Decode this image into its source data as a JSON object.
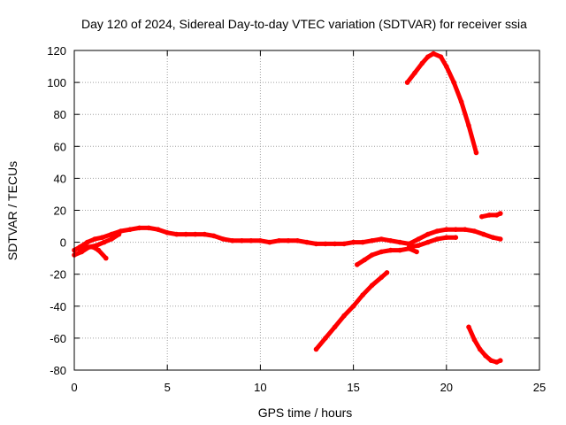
{
  "chart_data": {
    "type": "scatter",
    "title": "Day 120 of 2024, Sidereal Day-to-day VTEC variation (SDTVAR) for receiver ssia",
    "xlabel": "GPS time / hours",
    "ylabel": "SDTVAR / TECUs",
    "xlim": [
      0,
      25
    ],
    "ylim": [
      -80,
      120
    ],
    "xticks": [
      0,
      5,
      10,
      15,
      20,
      25
    ],
    "yticks": [
      -80,
      -60,
      -40,
      -20,
      0,
      20,
      40,
      60,
      80,
      100,
      120
    ],
    "grid": true,
    "legend": "none",
    "color": "#ff0000",
    "series": [
      {
        "x": [
          0.0,
          0.3,
          0.7,
          1.1,
          1.5,
          2.0,
          2.5,
          3.0,
          3.5,
          4.0,
          4.5,
          5.0,
          5.5,
          6.0,
          6.5,
          7.0,
          7.5,
          8.0,
          8.5,
          9.0,
          9.5,
          10.0,
          10.5,
          11.0,
          11.5,
          12.0,
          12.5,
          13.0,
          13.5,
          14.0,
          14.5,
          15.0,
          15.5,
          16.0,
          16.5,
          17.0,
          17.5,
          18.0,
          18.5,
          19.0,
          19.5,
          20.0,
          20.5,
          21.0,
          21.5,
          22.0,
          22.5,
          22.9
        ],
        "y": [
          -5,
          -3,
          0,
          2,
          3,
          5,
          7,
          8,
          9,
          9,
          8,
          6,
          5,
          5,
          5,
          5,
          4,
          2,
          1,
          1,
          1,
          1,
          0,
          1,
          1,
          1,
          0,
          -1,
          -1,
          -1,
          -1,
          0,
          0,
          1,
          2,
          1,
          0,
          -1,
          2,
          5,
          7,
          8,
          8,
          8,
          7,
          5,
          3,
          2
        ]
      },
      {
        "x": [
          0.0,
          0.4,
          0.8,
          1.2,
          1.6,
          2.0,
          2.4
        ],
        "y": [
          -8,
          -6,
          -3,
          -2,
          0,
          2,
          5
        ]
      },
      {
        "x": [
          0.2,
          0.6,
          1.0,
          1.3,
          1.7
        ],
        "y": [
          -4,
          -3,
          -3,
          -5,
          -10
        ]
      },
      {
        "x": [
          15.2,
          15.6,
          16.0,
          16.5,
          17.0,
          17.5,
          18.0,
          18.4
        ],
        "y": [
          -14,
          -11,
          -8,
          -6,
          -5,
          -5,
          -4,
          -6
        ]
      },
      {
        "x": [
          13.0,
          13.5,
          14.0,
          14.5,
          15.0,
          15.5,
          16.0,
          16.5,
          16.8
        ],
        "y": [
          -67,
          -60,
          -53,
          -46,
          -40,
          -33,
          -27,
          -22,
          -19
        ]
      },
      {
        "x": [
          17.9,
          18.3,
          18.7,
          19.0,
          19.3,
          19.7,
          20.0,
          20.4,
          20.8,
          21.2,
          21.6
        ],
        "y": [
          100,
          106,
          112,
          116,
          118,
          116,
          110,
          100,
          88,
          73,
          56
        ]
      },
      {
        "x": [
          21.2,
          21.5,
          21.8,
          22.1,
          22.4,
          22.7,
          22.9
        ],
        "y": [
          -53,
          -61,
          -67,
          -71,
          -74,
          -75,
          -74
        ]
      },
      {
        "x": [
          21.9,
          22.3,
          22.7,
          22.9
        ],
        "y": [
          16,
          17,
          17,
          18
        ]
      },
      {
        "x": [
          18.0,
          18.5,
          19.0,
          19.5,
          20.0,
          20.5
        ],
        "y": [
          -3,
          -2,
          0,
          2,
          3,
          3
        ]
      }
    ]
  }
}
